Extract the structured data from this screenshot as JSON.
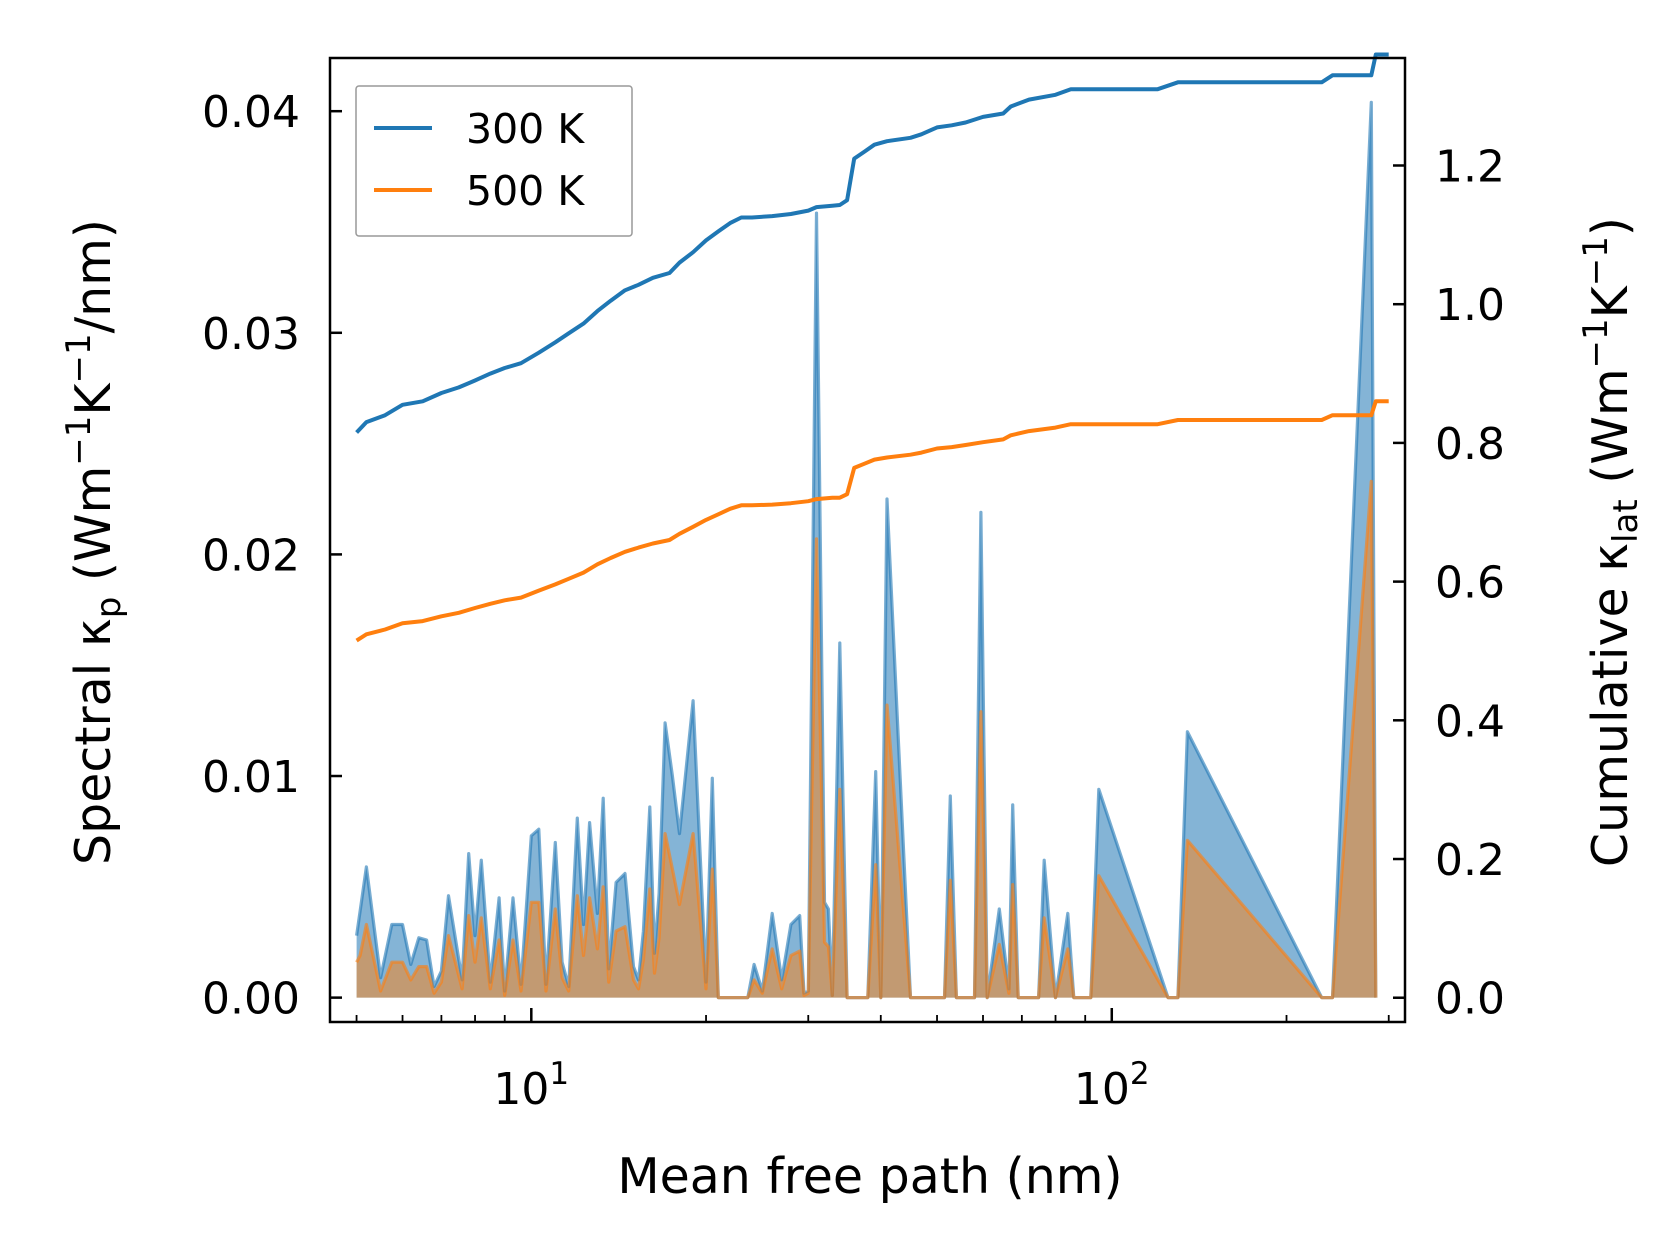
{
  "chart_data": {
    "type": "line",
    "title": "",
    "xlabel": "Mean free path (nm)",
    "ylabel_left": {
      "main": "Spectral κ",
      "sub": "p",
      "unit_prefix": " (Wm",
      "sup1": "−1",
      "unit_mid": "K",
      "sup2": "−1",
      "unit_suffix": "/nm)"
    },
    "ylabel_right": {
      "main": "Cumulative κ",
      "sub": "lat",
      "unit_prefix": " (Wm",
      "sup1": "−1",
      "unit_mid": "K",
      "sup2": "−1",
      "unit_suffix": ")"
    },
    "xscale": "log",
    "xlim": [
      4.5,
      320
    ],
    "ylim_left": [
      -0.0011,
      0.0424
    ],
    "ylim_right": [
      -0.035,
      1.355
    ],
    "xticks": [
      {
        "value": 10,
        "base": "10",
        "exp": "1"
      },
      {
        "value": 100,
        "base": "10",
        "exp": "2"
      }
    ],
    "yticks_left": [
      "0.00",
      "0.01",
      "0.02",
      "0.03",
      "0.04"
    ],
    "yticks_right": [
      "0.0",
      "0.2",
      "0.4",
      "0.6",
      "0.8",
      "1.0",
      "1.2"
    ],
    "legend": {
      "location": "top-left",
      "entries": [
        {
          "label": "300 K",
          "color": "#1f77b4"
        },
        {
          "label": "500 K",
          "color": "#ff7f0e"
        }
      ]
    },
    "spectral_x": [
      5.0,
      5.07,
      5.2,
      5.5,
      5.75,
      6.0,
      6.2,
      6.4,
      6.6,
      6.8,
      7.0,
      7.2,
      7.6,
      7.8,
      8.0,
      8.2,
      8.5,
      8.8,
      9.0,
      9.3,
      9.6,
      10.0,
      10.3,
      10.6,
      11.0,
      11.3,
      11.6,
      12.0,
      12.3,
      12.6,
      13.0,
      13.3,
      13.6,
      14.0,
      14.5,
      15.0,
      15.3,
      15.6,
      16.0,
      16.3,
      16.6,
      17.0,
      17.5,
      18.0,
      19.0,
      20.0,
      20.5,
      21.0,
      22.0,
      22.8,
      23.2,
      23.6,
      24.2,
      25.0,
      26.0,
      27.0,
      28.0,
      29.0,
      29.5,
      30.0,
      31.0,
      32.0,
      32.5,
      33.0,
      34.0,
      35.0,
      35.5,
      36.2,
      37.0,
      38.0,
      39.2,
      40.0,
      41.0,
      45.0,
      47.0,
      48.5,
      50.0,
      51.5,
      52.7,
      54.0,
      56.0,
      58.0,
      59.5,
      61.0,
      64.0,
      66.5,
      67.5,
      69.0,
      71.0,
      73.0,
      74.8,
      76.5,
      80.0,
      84.0,
      86.0,
      88.0,
      90.0,
      92.0,
      95.0,
      125.0,
      130.0,
      135.0,
      230.0,
      235.0,
      240.0,
      280.0,
      285.0,
      290.0
    ],
    "series": [
      {
        "name": "300 K",
        "color": "#1f77b4",
        "spectral": [
          0.0028,
          0.0039,
          0.0059,
          0.0009,
          0.0033,
          0.0033,
          0.0015,
          0.0027,
          0.0026,
          0.0005,
          0.0012,
          0.0046,
          0.0008,
          0.0065,
          0.0028,
          0.0062,
          0.0007,
          0.0045,
          0.0003,
          0.0045,
          0.0006,
          0.0073,
          0.0076,
          0.0006,
          0.007,
          0.0016,
          0.0005,
          0.0081,
          0.0033,
          0.0079,
          0.0038,
          0.009,
          0.0013,
          0.0052,
          0.0056,
          0.0014,
          0.0008,
          0.003,
          0.0086,
          0.002,
          0.0047,
          0.0124,
          0.01,
          0.0074,
          0.0134,
          0.0007,
          0.0099,
          0.0,
          0.0,
          0.0,
          0.0,
          0.0,
          0.0015,
          0.0003,
          0.0038,
          0.0008,
          0.0033,
          0.0037,
          0.0002,
          0.0003,
          0.0354,
          0.0043,
          0.004,
          0.0001,
          0.016,
          0.0,
          0.0,
          0.0,
          0.0,
          0.0,
          0.0102,
          0.0,
          0.0225,
          0.0,
          0.0,
          0.0,
          0.0,
          0.0,
          0.0091,
          0.0,
          0.0,
          0.0,
          0.0219,
          0.0,
          0.004,
          0.0004,
          0.0087,
          0.0,
          0.0,
          0.0,
          0.0,
          0.0062,
          0.0,
          0.0038,
          0.0,
          0.0,
          0.0,
          0.0,
          0.0094,
          0.0,
          0.0,
          0.012,
          0.0,
          0.0,
          0.0,
          0.0404,
          0.0
        ],
        "cumulative_x": [
          5.0,
          5.2,
          5.6,
          6.0,
          6.5,
          7.0,
          7.5,
          8.0,
          8.5,
          9.0,
          9.6,
          10.3,
          11.0,
          11.6,
          12.3,
          13.0,
          13.7,
          14.5,
          15.3,
          16.2,
          17.3,
          18.0,
          19.0,
          20.0,
          21.0,
          22.0,
          23.0,
          24.0,
          26.0,
          28.0,
          30.0,
          31.0,
          33.0,
          34.0,
          35.0,
          36.0,
          37.5,
          39.0,
          41.0,
          45.0,
          47.0,
          50.0,
          53.0,
          56.0,
          60.0,
          65.0,
          67.0,
          72.0,
          80.0,
          85.0,
          95.0,
          120.0,
          130.0,
          230.0,
          240.0,
          280.0,
          285.0,
          300.0
        ],
        "cumulative": [
          0.815,
          0.83,
          0.84,
          0.855,
          0.86,
          0.872,
          0.88,
          0.89,
          0.9,
          0.908,
          0.915,
          0.93,
          0.945,
          0.958,
          0.972,
          0.99,
          1.005,
          1.02,
          1.028,
          1.038,
          1.045,
          1.06,
          1.075,
          1.092,
          1.105,
          1.117,
          1.125,
          1.125,
          1.127,
          1.13,
          1.135,
          1.14,
          1.142,
          1.143,
          1.15,
          1.21,
          1.22,
          1.23,
          1.235,
          1.24,
          1.245,
          1.255,
          1.258,
          1.262,
          1.27,
          1.275,
          1.285,
          1.295,
          1.302,
          1.31,
          1.31,
          1.31,
          1.32,
          1.32,
          1.33,
          1.33,
          1.36,
          1.36
        ]
      },
      {
        "name": "500 K",
        "color": "#ff7f0e",
        "spectral": [
          0.0016,
          0.0019,
          0.0033,
          0.0003,
          0.0016,
          0.0016,
          0.0008,
          0.0014,
          0.0014,
          0.0002,
          0.0007,
          0.0028,
          0.0004,
          0.0037,
          0.0016,
          0.0036,
          0.0004,
          0.0026,
          0.0001,
          0.0026,
          0.0003,
          0.0043,
          0.0043,
          0.0003,
          0.004,
          0.0009,
          0.0003,
          0.0046,
          0.0019,
          0.0045,
          0.0022,
          0.005,
          0.0007,
          0.003,
          0.0032,
          0.0008,
          0.0004,
          0.0017,
          0.0049,
          0.0011,
          0.0027,
          0.0074,
          0.0058,
          0.0042,
          0.0074,
          0.0004,
          0.0058,
          0.0,
          0.0,
          0.0,
          0.0,
          0.0,
          0.0008,
          0.0002,
          0.0022,
          0.0004,
          0.0019,
          0.0021,
          0.0001,
          0.0002,
          0.0207,
          0.0025,
          0.0023,
          0.0001,
          0.0094,
          0.0,
          0.0,
          0.0,
          0.0,
          0.0,
          0.006,
          0.0,
          0.0132,
          0.0,
          0.0,
          0.0,
          0.0,
          0.0,
          0.0053,
          0.0,
          0.0,
          0.0,
          0.0129,
          0.0,
          0.0024,
          0.0002,
          0.0051,
          0.0,
          0.0,
          0.0,
          0.0,
          0.0036,
          0.0,
          0.0022,
          0.0,
          0.0,
          0.0,
          0.0,
          0.0055,
          0.0,
          0.0,
          0.0071,
          0.0,
          0.0,
          0.0,
          0.0233,
          0.0
        ],
        "cumulative_x": [
          5.0,
          5.2,
          5.6,
          6.0,
          6.5,
          7.0,
          7.5,
          8.0,
          8.5,
          9.0,
          9.6,
          10.3,
          11.0,
          11.6,
          12.3,
          13.0,
          13.7,
          14.5,
          15.3,
          16.2,
          17.3,
          18.0,
          19.0,
          20.0,
          21.0,
          22.0,
          23.0,
          24.0,
          26.0,
          28.0,
          30.0,
          31.0,
          33.0,
          34.0,
          35.0,
          36.0,
          37.5,
          39.0,
          41.0,
          45.0,
          47.0,
          50.0,
          53.0,
          56.0,
          60.0,
          65.0,
          67.0,
          72.0,
          80.0,
          85.0,
          95.0,
          120.0,
          130.0,
          230.0,
          240.0,
          280.0,
          285.0,
          300.0
        ],
        "cumulative": [
          0.515,
          0.524,
          0.531,
          0.54,
          0.543,
          0.55,
          0.555,
          0.562,
          0.568,
          0.573,
          0.577,
          0.587,
          0.596,
          0.604,
          0.613,
          0.625,
          0.634,
          0.643,
          0.649,
          0.655,
          0.66,
          0.669,
          0.679,
          0.689,
          0.697,
          0.705,
          0.71,
          0.71,
          0.711,
          0.713,
          0.716,
          0.719,
          0.721,
          0.721,
          0.726,
          0.764,
          0.77,
          0.776,
          0.779,
          0.783,
          0.786,
          0.792,
          0.794,
          0.797,
          0.801,
          0.805,
          0.811,
          0.817,
          0.822,
          0.827,
          0.827,
          0.827,
          0.833,
          0.833,
          0.84,
          0.84,
          0.86,
          0.86
        ]
      }
    ]
  }
}
